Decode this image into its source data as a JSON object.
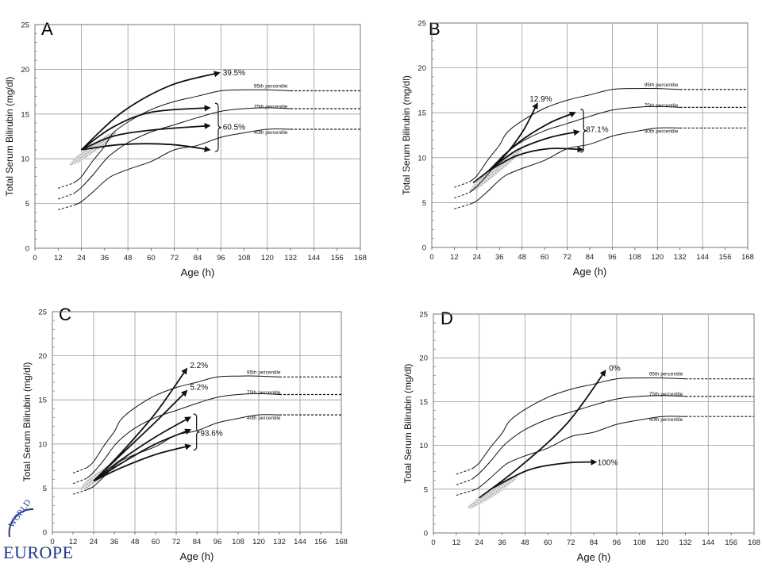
{
  "panels": [
    {
      "panel_label": "A",
      "chart_data": {
        "type": "line",
        "ylabel": "Total Serum Bilirubin (mg/dl)",
        "xlabel": "Age (h)",
        "xlim": [
          0,
          168
        ],
        "ylim": [
          0,
          25
        ],
        "xticks": [
          0,
          12,
          24,
          36,
          48,
          60,
          72,
          84,
          96,
          108,
          120,
          132,
          144,
          156,
          168
        ],
        "yticks": [
          0,
          5,
          10,
          15,
          20,
          25
        ],
        "percentile_curves": [
          {
            "label": "95th percentile",
            "x": [
              12,
              20,
              24,
              30,
              36,
              40,
              48,
              60,
              72,
              84,
              96,
              108,
              120,
              132
            ],
            "y": [
              6.7,
              7.3,
              8,
              9.8,
              11.4,
              12.8,
              14.1,
              15.5,
              16.4,
              17,
              17.6,
              17.7,
              17.7,
              17.6
            ],
            "extension": [
              [
                132,
                17.6
              ],
              [
                168,
                17.6
              ]
            ]
          },
          {
            "label": "75th percentile",
            "x": [
              12,
              20,
              24,
              30,
              36,
              40,
              48,
              60,
              72,
              84,
              96,
              108,
              120,
              132
            ],
            "y": [
              5.5,
              6.1,
              6.8,
              8.2,
              9.8,
              10.6,
              11.8,
              13,
              13.8,
              14.6,
              15.3,
              15.6,
              15.7,
              15.6
            ],
            "extension": [
              [
                132,
                15.6
              ],
              [
                168,
                15.6
              ]
            ]
          },
          {
            "label": "40th percentile",
            "x": [
              12,
              20,
              24,
              30,
              36,
              40,
              48,
              60,
              72,
              84,
              96,
              108,
              120,
              132
            ],
            "y": [
              4.3,
              4.8,
              5.2,
              6.3,
              7.5,
              8.1,
              8.8,
              9.7,
              11,
              11.5,
              12.4,
              12.9,
              13.3,
              13.3
            ],
            "extension": [
              [
                132,
                13.3
              ],
              [
                168,
                13.3
              ]
            ]
          }
        ],
        "predischarge_zone": {
          "from": [
            18,
            9.3
          ],
          "to": [
            42,
            13
          ]
        },
        "trajectory_arrows": [
          {
            "x": [
              24,
              45,
              70,
              95
            ],
            "y": [
              11,
              15.2,
              18.2,
              19.6
            ]
          },
          {
            "x": [
              24,
              40,
              60,
              90
            ],
            "y": [
              11,
              13.5,
              15.2,
              15.7
            ]
          },
          {
            "x": [
              24,
              40,
              60,
              90
            ],
            "y": [
              11,
              12.5,
              13.2,
              13.7
            ]
          },
          {
            "x": [
              24,
              45,
              70,
              90
            ],
            "y": [
              11,
              11.6,
              11.6,
              11
            ]
          }
        ],
        "annotations": [
          {
            "text": "39.5%",
            "x": 97,
            "y": 19.6
          },
          {
            "text": "60.5%",
            "x": 97,
            "y": 13.5
          }
        ],
        "brace": {
          "x": 93,
          "y_from": 10.8,
          "y_to": 16.2
        }
      }
    },
    {
      "panel_label": "B",
      "chart_data": {
        "type": "line",
        "ylabel": "Total Serum Bilirubin (mg/dl)",
        "xlabel": "Age (h)",
        "xlim": [
          0,
          168
        ],
        "ylim": [
          0,
          25
        ],
        "xticks": [
          0,
          12,
          24,
          36,
          48,
          60,
          72,
          84,
          96,
          108,
          120,
          132,
          144,
          156,
          168
        ],
        "yticks": [
          0,
          5,
          10,
          15,
          20,
          25
        ],
        "percentile_curves": [
          {
            "label": "95th percentile",
            "x": [
              12,
              20,
              24,
              30,
              36,
              40,
              48,
              60,
              72,
              84,
              96,
              108,
              120,
              132
            ],
            "y": [
              6.7,
              7.3,
              8,
              9.8,
              11.4,
              12.8,
              14.1,
              15.5,
              16.4,
              17,
              17.6,
              17.7,
              17.7,
              17.6
            ],
            "extension": [
              [
                132,
                17.6
              ],
              [
                168,
                17.6
              ]
            ]
          },
          {
            "label": "75th percentile",
            "x": [
              12,
              20,
              24,
              30,
              36,
              40,
              48,
              60,
              72,
              84,
              96,
              108,
              120,
              132
            ],
            "y": [
              5.5,
              6.1,
              6.8,
              8.2,
              9.8,
              10.6,
              11.8,
              13,
              13.8,
              14.6,
              15.3,
              15.6,
              15.7,
              15.6
            ],
            "extension": [
              [
                132,
                15.6
              ],
              [
                168,
                15.6
              ]
            ]
          },
          {
            "label": "40th percentile",
            "x": [
              12,
              20,
              24,
              30,
              36,
              40,
              48,
              60,
              72,
              84,
              96,
              108,
              120,
              132
            ],
            "y": [
              4.3,
              4.8,
              5.2,
              6.3,
              7.5,
              8.1,
              8.8,
              9.7,
              11,
              11.5,
              12.4,
              12.9,
              13.3,
              13.3
            ],
            "extension": [
              [
                132,
                13.3
              ],
              [
                168,
                13.3
              ]
            ]
          }
        ],
        "predischarge_zone": {
          "from": [
            20,
            6.2
          ],
          "to": [
            48,
            11
          ]
        },
        "trajectory_arrows": [
          {
            "x": [
              22,
              36,
              48,
              56
            ],
            "y": [
              7.2,
              9.6,
              12.8,
              16
            ]
          },
          {
            "x": [
              30,
              45,
              62,
              76
            ],
            "y": [
              8.5,
              11.5,
              13.8,
              15
            ]
          },
          {
            "x": [
              30,
              45,
              62,
              78
            ],
            "y": [
              8.5,
              10.8,
              12.2,
              12.9
            ]
          },
          {
            "x": [
              30,
              45,
              62,
              80
            ],
            "y": [
              8.5,
              10.2,
              11,
              10.9
            ]
          }
        ],
        "annotations": [
          {
            "text": "12.9%",
            "x": 52,
            "y": 16.5
          },
          {
            "text": "87.1%",
            "x": 82,
            "y": 13.1
          }
        ],
        "brace": {
          "x": 79,
          "y_from": 10.6,
          "y_to": 15.4
        }
      }
    },
    {
      "panel_label": "C",
      "chart_data": {
        "type": "line",
        "ylabel": "Total Serum Bilirubin (mg/dl)",
        "xlabel": "Age (h)",
        "xlim": [
          0,
          168
        ],
        "ylim": [
          0,
          25
        ],
        "xticks": [
          0,
          12,
          24,
          36,
          48,
          60,
          72,
          84,
          96,
          108,
          120,
          132,
          144,
          156,
          168
        ],
        "yticks": [
          0,
          5,
          10,
          15,
          20,
          25
        ],
        "percentile_curves": [
          {
            "label": "95th percentile",
            "x": [
              12,
              20,
              24,
              30,
              36,
              40,
              48,
              60,
              72,
              84,
              96,
              108,
              120,
              132
            ],
            "y": [
              6.7,
              7.3,
              8,
              9.8,
              11.4,
              12.8,
              14.1,
              15.5,
              16.4,
              17,
              17.6,
              17.7,
              17.7,
              17.6
            ],
            "extension": [
              [
                132,
                17.6
              ],
              [
                168,
                17.6
              ]
            ]
          },
          {
            "label": "75th percentile",
            "x": [
              12,
              20,
              24,
              30,
              36,
              40,
              48,
              60,
              72,
              84,
              96,
              108,
              120,
              132
            ],
            "y": [
              5.5,
              6.1,
              6.8,
              8.2,
              9.8,
              10.6,
              11.8,
              13,
              13.8,
              14.6,
              15.3,
              15.6,
              15.7,
              15.6
            ],
            "extension": [
              [
                132,
                15.6
              ],
              [
                168,
                15.6
              ]
            ]
          },
          {
            "label": "40th percentile",
            "x": [
              12,
              20,
              24,
              30,
              36,
              40,
              48,
              60,
              72,
              84,
              96,
              108,
              120,
              132
            ],
            "y": [
              4.3,
              4.8,
              5.2,
              6.3,
              7.5,
              8.1,
              8.8,
              9.7,
              11,
              11.5,
              12.4,
              12.9,
              13.3,
              13.3
            ],
            "extension": [
              [
                132,
                13.3
              ],
              [
                168,
                13.3
              ]
            ]
          }
        ],
        "predischarge_zone": {
          "from": [
            16,
            4.8
          ],
          "to": [
            40,
            8.2
          ]
        },
        "trajectory_arrows": [
          {
            "x": [
              24,
              40,
              60,
              78
            ],
            "y": [
              5.8,
              9,
              13.5,
              18.5
            ]
          },
          {
            "x": [
              24,
              40,
              60,
              78
            ],
            "y": [
              5.8,
              8.8,
              12.5,
              16
            ]
          },
          {
            "x": [
              24,
              40,
              60,
              80
            ],
            "y": [
              5.8,
              8.2,
              10.8,
              13
            ]
          },
          {
            "x": [
              24,
              40,
              60,
              80
            ],
            "y": [
              5.8,
              7.8,
              10,
              11.6
            ]
          },
          {
            "x": [
              24,
              40,
              60,
              80
            ],
            "y": [
              5.8,
              7.3,
              8.8,
              9.8
            ]
          }
        ],
        "annotations": [
          {
            "text": "2.2%",
            "x": 80,
            "y": 18.9
          },
          {
            "text": "5.2%",
            "x": 80,
            "y": 16.4
          },
          {
            "text": "93.6%",
            "x": 86,
            "y": 11.2
          }
        ],
        "brace": {
          "x": 82,
          "y_from": 9.3,
          "y_to": 13.4
        }
      }
    },
    {
      "panel_label": "D",
      "chart_data": {
        "type": "line",
        "ylabel": "Total Serum Bilirubin (mg/dl)",
        "xlabel": "Age (h)",
        "xlim": [
          0,
          168
        ],
        "ylim": [
          0,
          25
        ],
        "xticks": [
          0,
          12,
          24,
          36,
          48,
          60,
          72,
          84,
          96,
          108,
          120,
          132,
          144,
          156,
          168
        ],
        "yticks": [
          0,
          5,
          10,
          15,
          20,
          25
        ],
        "percentile_curves": [
          {
            "label": "95th percentile",
            "x": [
              12,
              20,
              24,
              30,
              36,
              40,
              48,
              60,
              72,
              84,
              96,
              108,
              120,
              132
            ],
            "y": [
              6.7,
              7.3,
              8,
              9.8,
              11.4,
              12.8,
              14.1,
              15.5,
              16.4,
              17,
              17.6,
              17.7,
              17.7,
              17.6
            ],
            "extension": [
              [
                132,
                17.6
              ],
              [
                168,
                17.6
              ]
            ]
          },
          {
            "label": "75th percentile",
            "x": [
              12,
              20,
              24,
              30,
              36,
              40,
              48,
              60,
              72,
              84,
              96,
              108,
              120,
              132
            ],
            "y": [
              5.5,
              6.1,
              6.8,
              8.2,
              9.8,
              10.6,
              11.8,
              13,
              13.8,
              14.6,
              15.3,
              15.6,
              15.7,
              15.6
            ],
            "extension": [
              [
                132,
                15.6
              ],
              [
                168,
                15.6
              ]
            ]
          },
          {
            "label": "40th percentile",
            "x": [
              12,
              20,
              24,
              30,
              36,
              40,
              48,
              60,
              72,
              84,
              96,
              108,
              120,
              132
            ],
            "y": [
              4.3,
              4.8,
              5.2,
              6.3,
              7.5,
              8.1,
              8.8,
              9.7,
              11,
              11.5,
              12.4,
              12.9,
              13.3,
              13.3
            ],
            "extension": [
              [
                132,
                13.3
              ],
              [
                168,
                13.3
              ]
            ]
          }
        ],
        "predischarge_zone": {
          "from": [
            18,
            2.8
          ],
          "to": [
            44,
            6.5
          ]
        },
        "trajectory_arrows": [
          {
            "x": [
              24,
              45,
              70,
              90
            ],
            "y": [
              4,
              7.5,
              12.5,
              18.5
            ]
          },
          {
            "x": [
              30,
              50,
              70,
              85
            ],
            "y": [
              5,
              7.2,
              8,
              8.1
            ]
          }
        ],
        "annotations": [
          {
            "text": "0%",
            "x": 92,
            "y": 18.8
          },
          {
            "text": "100%",
            "x": 86,
            "y": 8
          }
        ],
        "brace": null
      }
    }
  ],
  "logo": {
    "text": "EUROPE",
    "arc_text": "WORLD"
  }
}
